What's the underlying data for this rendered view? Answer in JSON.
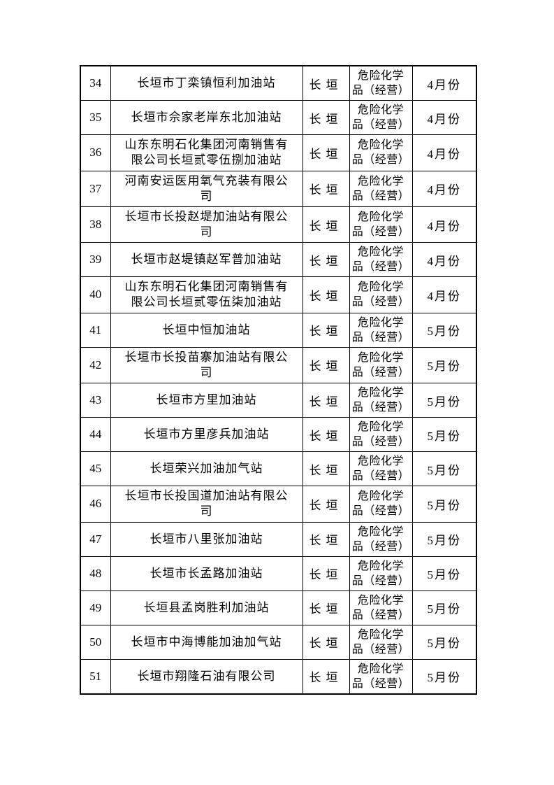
{
  "page": {
    "background_color": "#ffffff",
    "border_color": "#000000",
    "text_color": "#000000"
  },
  "table": {
    "rows": [
      {
        "no": "34",
        "name": "长垣市丁栾镇恒利加油站",
        "region": "长垣",
        "category": "危险化学\n品（经营）",
        "month": "4月份"
      },
      {
        "no": "35",
        "name": "长垣市佘家老岸东北加油站",
        "region": "长垣",
        "category": "危险化学\n品（经营）",
        "month": "4月份"
      },
      {
        "no": "36",
        "name": "山东东明石化集团河南销售有\n限公司长垣贰零伍捌加油站",
        "region": "长垣",
        "category": "危险化学\n品（经营）",
        "month": "4月份"
      },
      {
        "no": "37",
        "name": "河南安运医用氧气充装有限公\n司",
        "region": "长垣",
        "category": "危险化学\n品（经营）",
        "month": "4月份"
      },
      {
        "no": "38",
        "name": "长垣市长投赵堤加油站有限公\n司",
        "region": "长垣",
        "category": "危险化学\n品（经营）",
        "month": "4月份"
      },
      {
        "no": "39",
        "name": "长垣市赵堤镇赵军普加油站",
        "region": "长垣",
        "category": "危险化学\n品（经营）",
        "month": "4月份"
      },
      {
        "no": "40",
        "name": "山东东明石化集团河南销售有\n限公司长垣贰零伍柒加油站",
        "region": "长垣",
        "category": "危险化学\n品（经营）",
        "month": "4月份"
      },
      {
        "no": "41",
        "name": "长垣中恒加油站",
        "region": "长垣",
        "category": "危险化学\n品（经营）",
        "month": "5月份"
      },
      {
        "no": "42",
        "name": "长垣市长投苗寨加油站有限公\n司",
        "region": "长垣",
        "category": "危险化学\n品（经营）",
        "month": "5月份"
      },
      {
        "no": "43",
        "name": "长垣市方里加油站",
        "region": "长垣",
        "category": "危险化学\n品（经营）",
        "month": "5月份"
      },
      {
        "no": "44",
        "name": "长垣市方里彦兵加油站",
        "region": "长垣",
        "category": "危险化学\n品（经营）",
        "month": "5月份"
      },
      {
        "no": "45",
        "name": "长垣荣兴加油加气站",
        "region": "长垣",
        "category": "危险化学\n品（经营）",
        "month": "5月份"
      },
      {
        "no": "46",
        "name": "长垣市长投国道加油站有限公\n司",
        "region": "长垣",
        "category": "危险化学\n品（经营）",
        "month": "5月份"
      },
      {
        "no": "47",
        "name": "长垣市八里张加油站",
        "region": "长垣",
        "category": "危险化学\n品（经营）",
        "month": "5月份"
      },
      {
        "no": "48",
        "name": "长垣市长孟路加油站",
        "region": "长垣",
        "category": "危险化学\n品（经营）",
        "month": "5月份"
      },
      {
        "no": "49",
        "name": "长垣县孟岗胜利加油站",
        "region": "长垣",
        "category": "危险化学\n品（经营）",
        "month": "5月份"
      },
      {
        "no": "50",
        "name": "长垣市中海博能加油加气站",
        "region": "长垣",
        "category": "危险化学\n品（经营）",
        "month": "5月份"
      },
      {
        "no": "51",
        "name": "长垣市翔隆石油有限公司",
        "region": "长垣",
        "category": "危险化学\n品（经营）",
        "month": "5月份"
      }
    ]
  }
}
